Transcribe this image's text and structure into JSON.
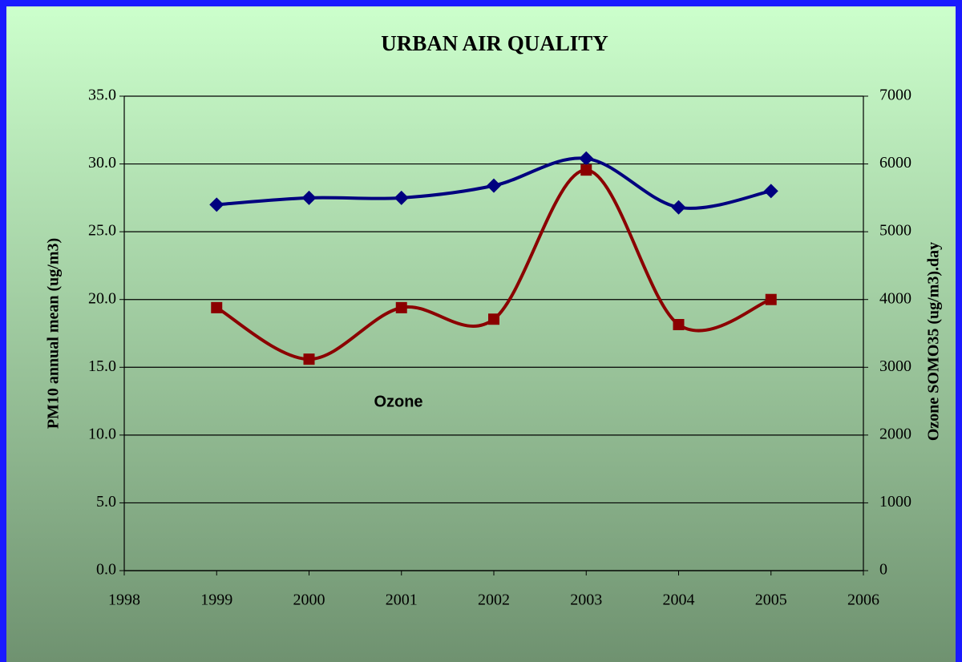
{
  "chart_data": {
    "type": "line",
    "title": "URBAN AIR QUALITY",
    "y_label": "PM10 annual mean (ug/m3)",
    "y2_label": "Ozone SOMO35  (ug/m3).day",
    "annotation": "Ozone",
    "x": [
      1999,
      2000,
      2001,
      2002,
      2003,
      2004,
      2005
    ],
    "xlim": [
      1998,
      2006
    ],
    "xticks": [
      1998,
      1999,
      2000,
      2001,
      2002,
      2003,
      2004,
      2005,
      2006
    ],
    "ylim": [
      0,
      35
    ],
    "yticks": [
      {
        "value": 0,
        "label": "0.0"
      },
      {
        "value": 5,
        "label": "5.0"
      },
      {
        "value": 10,
        "label": "10.0"
      },
      {
        "value": 15,
        "label": "15.0"
      },
      {
        "value": 20,
        "label": "20.0"
      },
      {
        "value": 25,
        "label": "25.0"
      },
      {
        "value": 30,
        "label": "30.0"
      },
      {
        "value": 35,
        "label": "35.0"
      }
    ],
    "y2lim": [
      0,
      7000
    ],
    "y2ticks": [
      0,
      1000,
      2000,
      3000,
      4000,
      5000,
      6000,
      7000
    ],
    "grid": true,
    "series": [
      {
        "color": "#00007f",
        "marker": "diamond",
        "values": [
          27.0,
          27.5,
          27.5,
          28.4,
          30.4,
          26.8,
          28.0
        ]
      },
      {
        "color": "#8b0000",
        "marker": "square",
        "axis": "y2",
        "values": [
          3880,
          3120,
          3880,
          3710,
          5910,
          3630,
          4000
        ]
      }
    ]
  }
}
